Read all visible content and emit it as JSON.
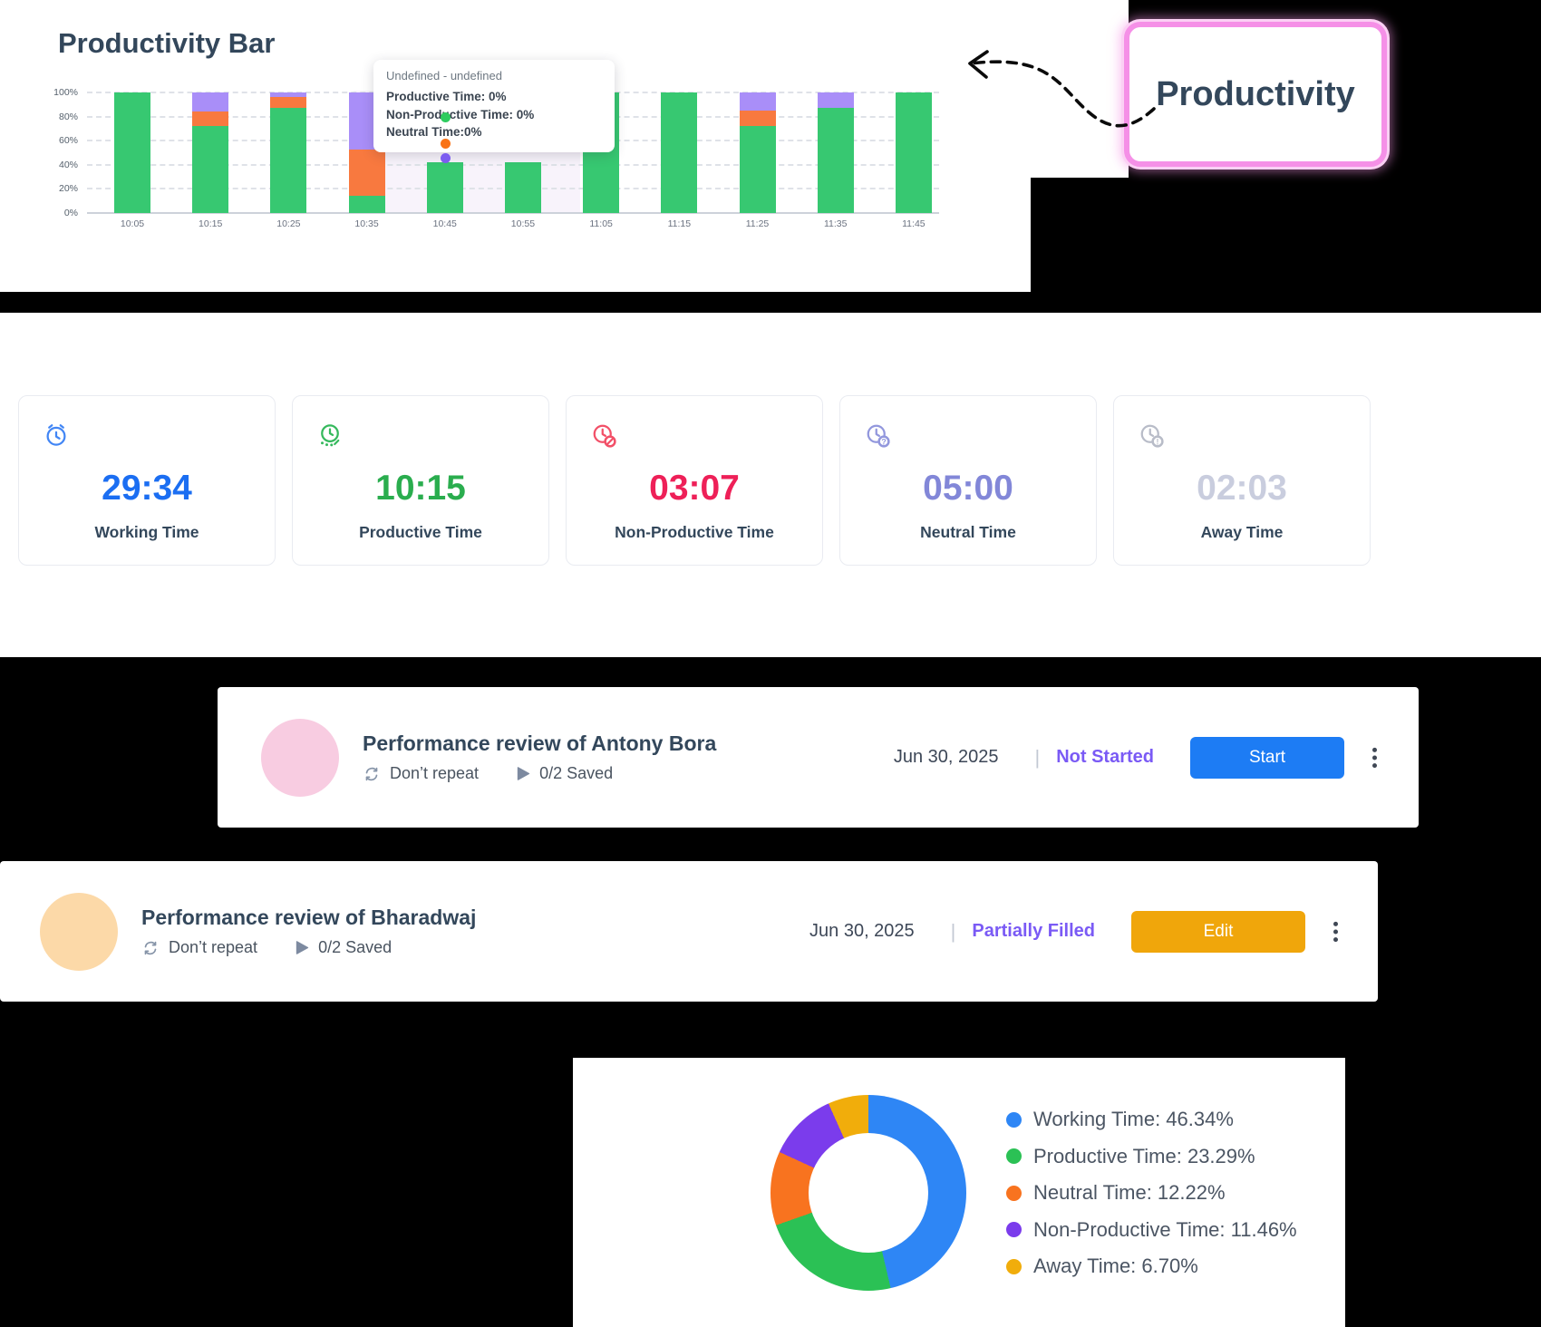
{
  "chart_panel": {
    "title": "Productivity Bar",
    "y_axis_labels": [
      "100%",
      "80%",
      "60%",
      "40%",
      "20%",
      "0%"
    ],
    "tooltip": {
      "header": "Undefined - undefined",
      "lines": [
        "Productive Time: 0%",
        "Non-Productive Time: 0%",
        "Neutral Time:0%"
      ],
      "marker_colors": [
        "#2ecc5f",
        "#f97316",
        "#7c5cf0"
      ]
    }
  },
  "annotation": {
    "label": "Productivity",
    "border_color": "#f590e7"
  },
  "stats_cards": [
    {
      "icon": "alarm-clock-icon",
      "value": "29:34",
      "label": "Working Time",
      "value_color": "#1b6ef2",
      "icon_color": "#4286f5"
    },
    {
      "icon": "productive-clock-icon",
      "value": "10:15",
      "label": "Productive Time",
      "value_color": "#2aad4e",
      "icon_color": "#36b95d"
    },
    {
      "icon": "non-productive-clock-icon",
      "value": "03:07",
      "label": "Non-Productive Time",
      "value_color": "#ee2058",
      "icon_color": "#f25068"
    },
    {
      "icon": "neutral-clock-icon",
      "value": "05:00",
      "label": "Neutral Time",
      "value_color": "#8287d8",
      "icon_color": "#9297dd"
    },
    {
      "icon": "away-clock-icon",
      "value": "02:03",
      "label": "Away Time",
      "value_color": "#c9cdde",
      "icon_color": "#b8bcc8"
    }
  ],
  "tasks": [
    {
      "title": "Performance review of Antony Bora",
      "repeat_label": "Don’t repeat",
      "saved_label": "0/2 Saved",
      "date": "Jun 30, 2025",
      "status": "Not Started",
      "status_color": "#7a5af5",
      "action_label": "Start",
      "action_color": "#1d7cf4",
      "avatar_color": "#f8cce1"
    },
    {
      "title": "Performance review of Bharadwaj",
      "repeat_label": "Don’t repeat",
      "saved_label": "0/2 Saved",
      "date": "Jun 30, 2025",
      "status": "Partially Filled",
      "status_color": "#7a5af5",
      "action_label": "Edit",
      "action_color": "#f0a60b",
      "avatar_color": "#fcd9a8"
    }
  ],
  "chart_data": [
    {
      "type": "bar",
      "stacked": true,
      "title": "Productivity Bar",
      "categories": [
        "10:05",
        "10:15",
        "10:25",
        "10:35",
        "10:45",
        "10:55",
        "11:05",
        "11:15",
        "11:25",
        "11:35",
        "11:45"
      ],
      "series": [
        {
          "name": "Productive Time",
          "color": "#37c871",
          "values": [
            100,
            72,
            87,
            14,
            42,
            42,
            100,
            100,
            72,
            87,
            100
          ]
        },
        {
          "name": "Neutral Time",
          "color": "#f8793f",
          "values": [
            0,
            12,
            9,
            39,
            0,
            0,
            0,
            0,
            13,
            0,
            0
          ]
        },
        {
          "name": "Non-Productive Time",
          "color": "#a98ef8",
          "values": [
            0,
            16,
            4,
            47,
            0,
            0,
            0,
            0,
            15,
            13,
            0
          ]
        }
      ],
      "ylim": [
        0,
        100
      ],
      "y_unit": "%",
      "grid": "dashed-horizontal",
      "legend_position": "none"
    },
    {
      "type": "pie",
      "donut": true,
      "slices": [
        {
          "label": "Working Time",
          "value": 46.34,
          "pct_text": "46.34%",
          "color": "#2e86f5"
        },
        {
          "label": "Productive Time",
          "value": 23.29,
          "pct_text": "23.29%",
          "color": "#2bc155"
        },
        {
          "label": "Neutral Time",
          "value": 12.22,
          "pct_text": "12.22%",
          "color": "#f8731f"
        },
        {
          "label": "Non-Productive Time",
          "value": 11.46,
          "pct_text": "11.46%",
          "color": "#7b3cec"
        },
        {
          "label": "Away Time",
          "value": 6.7,
          "pct_text": "6.70%",
          "color": "#f1ad0b"
        }
      ],
      "legend_position": "right"
    }
  ]
}
